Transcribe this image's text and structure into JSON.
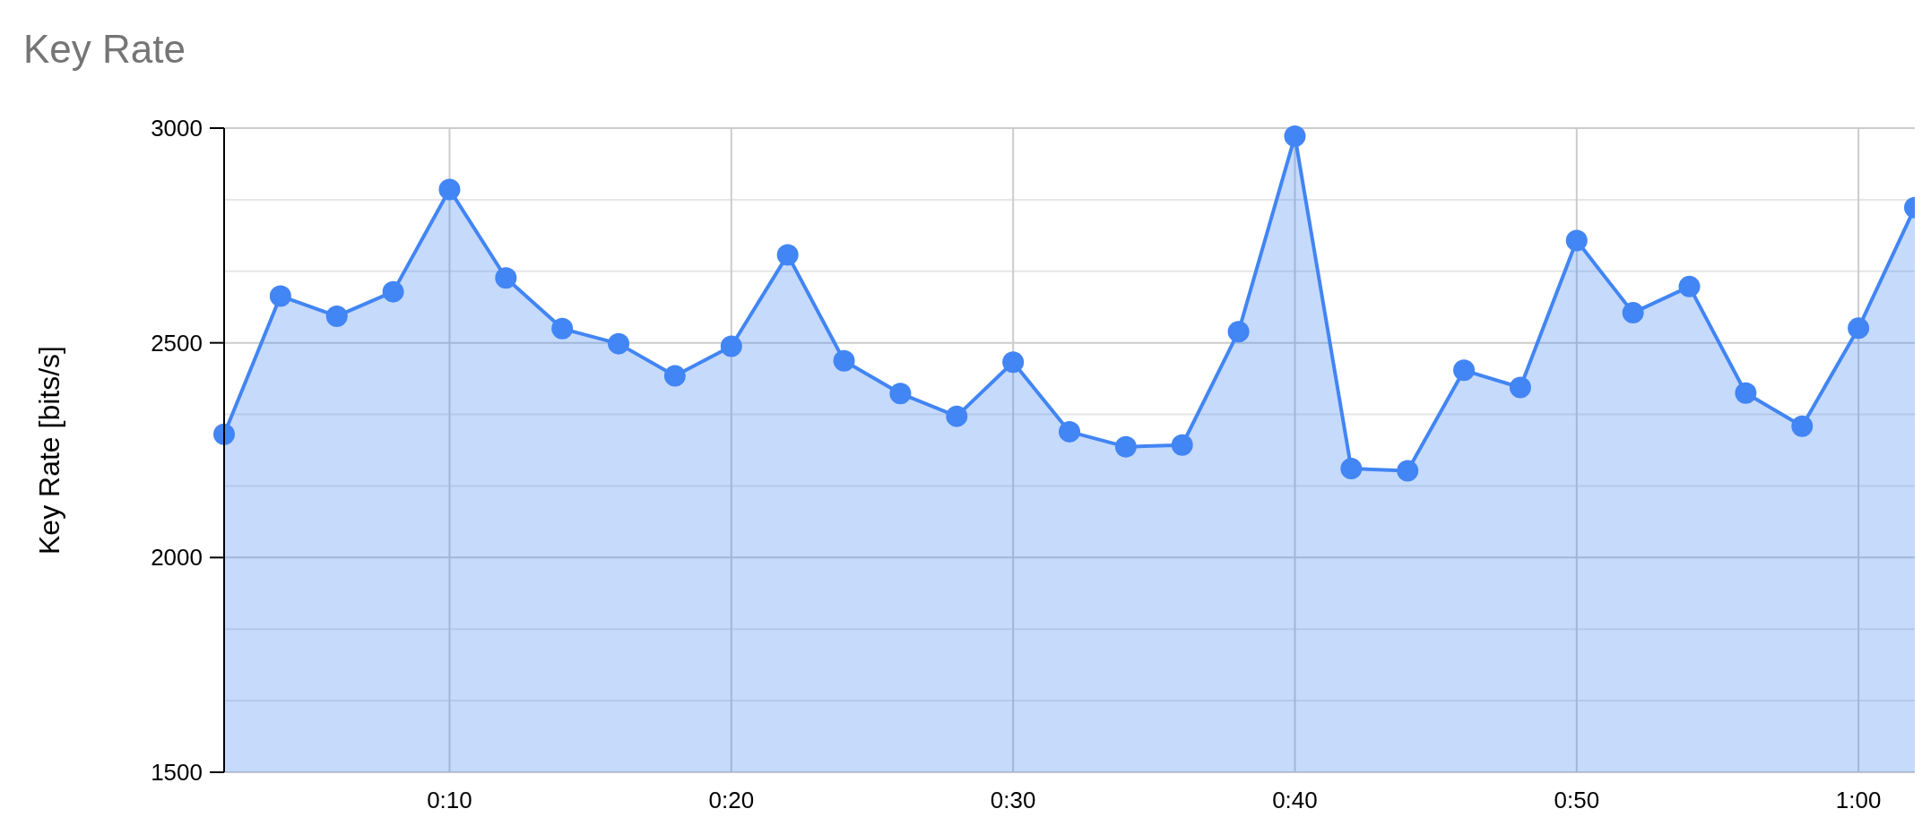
{
  "chart_data": {
    "type": "area",
    "title": "Key Rate",
    "ylabel": "Key Rate [bits/s]",
    "x": [
      2,
      4,
      6,
      8,
      10,
      12,
      14,
      16,
      18,
      20,
      22,
      24,
      26,
      28,
      30,
      32,
      34,
      36,
      38,
      40,
      42,
      44,
      46,
      48,
      50,
      52,
      54,
      56,
      58,
      60,
      62
    ],
    "series": [
      {
        "color": "#4285f4",
        "values": [
          2287,
          2609,
          2562,
          2619,
          2857,
          2651,
          2533,
          2498,
          2423,
          2492,
          2705,
          2458,
          2382,
          2329,
          2455,
          2293,
          2258,
          2262,
          2526,
          2981,
          2207,
          2202,
          2436,
          2396,
          2738,
          2570,
          2631,
          2383,
          2306,
          2534,
          2815
        ]
      }
    ],
    "xlim": [
      2,
      62
    ],
    "xticks": [
      {
        "value": 10,
        "label": "0:10"
      },
      {
        "value": 20,
        "label": "0:20"
      },
      {
        "value": 30,
        "label": "0:30"
      },
      {
        "value": 40,
        "label": "0:40"
      },
      {
        "value": 50,
        "label": "0:50"
      },
      {
        "value": 60,
        "label": "1:00"
      }
    ],
    "ylim": [
      1500,
      3000
    ],
    "yticks": [
      1500,
      {
        "value": 1666.67,
        "label": null
      },
      {
        "value": 1833.33,
        "label": null
      },
      2000,
      {
        "value": 2166.67,
        "label": null
      },
      {
        "value": 2333.33,
        "label": null
      },
      2500,
      {
        "value": 2666.67,
        "label": null
      },
      {
        "value": 2833.33,
        "label": null
      },
      3000
    ],
    "grid": true,
    "marker": "circle",
    "line_style": "solid"
  }
}
